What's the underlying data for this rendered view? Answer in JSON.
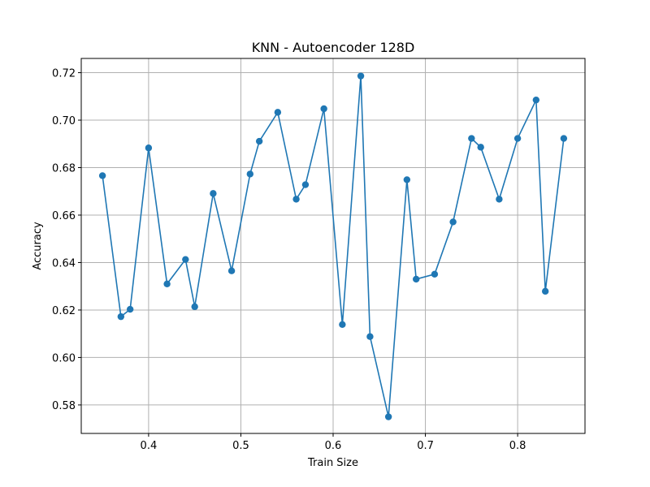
{
  "chart_data": {
    "type": "line",
    "title": "KNN - Autoencoder 128D",
    "xlabel": "Train Size",
    "ylabel": "Accuracy",
    "xlim": [
      0.327,
      0.873
    ],
    "ylim": [
      0.568,
      0.726
    ],
    "xticks": [
      0.4,
      0.5,
      0.6,
      0.7,
      0.8
    ],
    "xtick_labels": [
      "0.4",
      "0.5",
      "0.6",
      "0.7",
      "0.8"
    ],
    "yticks": [
      0.58,
      0.6,
      0.62,
      0.64,
      0.66,
      0.68,
      0.7,
      0.72
    ],
    "ytick_labels": [
      "0.58",
      "0.60",
      "0.62",
      "0.64",
      "0.66",
      "0.68",
      "0.70",
      "0.72"
    ],
    "grid": true,
    "color": "#1f77b4",
    "series": [
      {
        "x": [
          0.35,
          0.37,
          0.38,
          0.4,
          0.42,
          0.44,
          0.45,
          0.47,
          0.49,
          0.51,
          0.52,
          0.54,
          0.56,
          0.57,
          0.59,
          0.61,
          0.63,
          0.64,
          0.66,
          0.68,
          0.69,
          0.71,
          0.73,
          0.75,
          0.76,
          0.78,
          0.8,
          0.82,
          0.83,
          0.85
        ],
        "y": [
          0.6766,
          0.6172,
          0.6203,
          0.6883,
          0.631,
          0.6413,
          0.6214,
          0.6691,
          0.6365,
          0.6773,
          0.6911,
          0.7033,
          0.6667,
          0.6728,
          0.7048,
          0.6139,
          0.7186,
          0.6088,
          0.575,
          0.6749,
          0.633,
          0.6351,
          0.6571,
          0.6923,
          0.6886,
          0.6667,
          0.6923,
          0.7085,
          0.6279,
          0.6923
        ]
      }
    ]
  }
}
